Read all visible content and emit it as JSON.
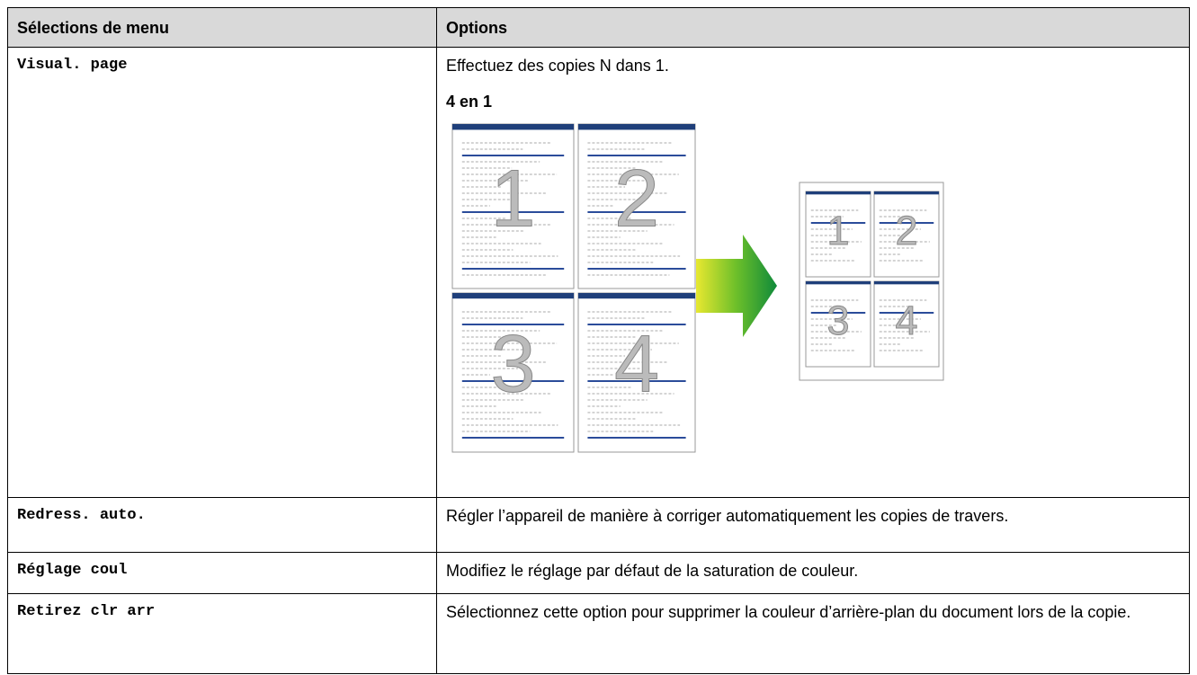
{
  "table": {
    "header": [
      "Sélections de menu",
      "Options"
    ],
    "rows": [
      {
        "menu": "Visual. page",
        "options": [
          "Effectuez des copies N dans 1.",
          "4 en 1"
        ]
      },
      {
        "menu": "Redress. auto.",
        "options": [
          "Régler l’appareil de manière à corriger automatiquement les copies de travers."
        ]
      },
      {
        "menu": "Réglage coul",
        "options": [
          "Modifiez le réglage par défaut de la saturation de couleur."
        ]
      },
      {
        "menu": "Retirez clr arr",
        "options": [
          "Sélectionnez cette option pour supprimer la couleur d’arrière-plan du document lors de la copie."
        ]
      }
    ]
  },
  "figure": {
    "pages": [
      "1",
      "2",
      "3",
      "4"
    ]
  }
}
